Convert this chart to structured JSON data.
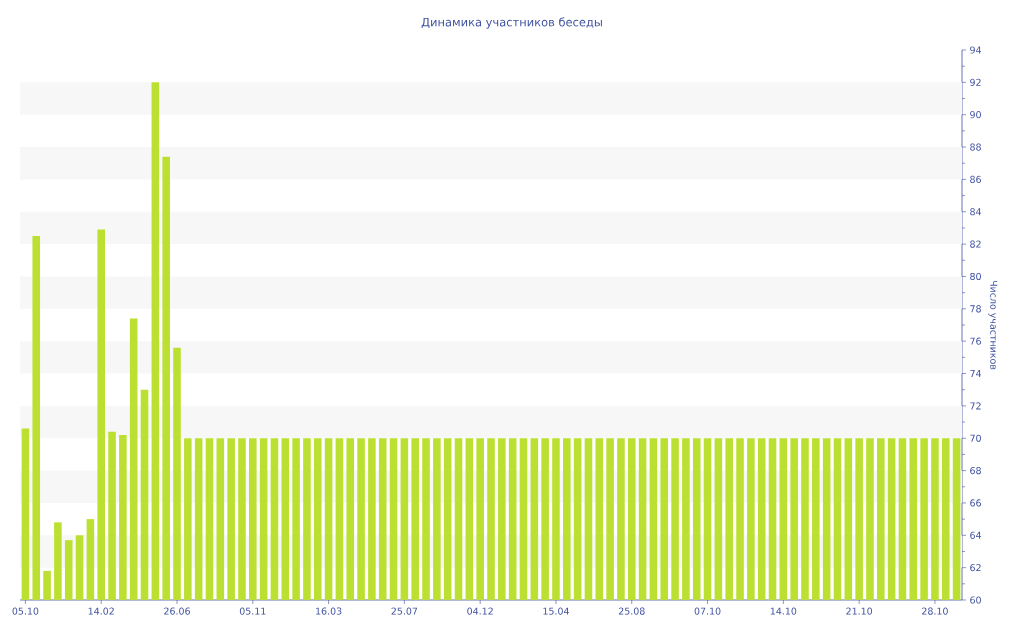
{
  "chart_data": {
    "type": "bar",
    "title": "Динамика участников беседы",
    "ylabel": "Число участников",
    "categories": [
      "05.10",
      null,
      null,
      null,
      null,
      null,
      null,
      "14.02",
      null,
      null,
      null,
      null,
      null,
      null,
      "26.06",
      null,
      null,
      null,
      null,
      null,
      null,
      "05.11",
      null,
      null,
      null,
      null,
      null,
      null,
      "16.03",
      null,
      null,
      null,
      null,
      null,
      null,
      "25.07",
      null,
      null,
      null,
      null,
      null,
      null,
      "04.12",
      null,
      null,
      null,
      null,
      null,
      null,
      "15.04",
      null,
      null,
      null,
      null,
      null,
      null,
      "25.08",
      null,
      null,
      null,
      null,
      null,
      null,
      "07.10",
      null,
      null,
      null,
      null,
      null,
      null,
      "14.10",
      null,
      null,
      null,
      null,
      null,
      null,
      "21.10",
      null,
      null,
      null,
      null,
      null,
      null,
      "28.10",
      null,
      null
    ],
    "values": [
      70.6,
      82.5,
      61.8,
      64.8,
      63.7,
      64.0,
      65.0,
      82.9,
      70.4,
      70.2,
      77.4,
      73.0,
      92.0,
      87.4,
      75.6,
      70,
      70,
      70,
      70,
      70,
      70,
      70,
      70,
      70,
      70,
      70,
      70,
      70,
      70,
      70,
      70,
      70,
      70,
      70,
      70,
      70,
      70,
      70,
      70,
      70,
      70,
      70,
      70,
      70,
      70,
      70,
      70,
      70,
      70,
      70,
      70,
      70,
      70,
      70,
      70,
      70,
      70,
      70,
      70,
      70,
      70,
      70,
      70,
      70,
      70,
      70,
      70,
      70,
      70,
      70,
      70,
      70,
      70,
      70,
      70,
      70,
      70,
      70,
      70,
      70,
      70,
      70,
      70,
      70,
      70,
      70,
      70
    ],
    "color": "#bce031",
    "ylim": [
      60,
      94
    ],
    "yticks": [
      60,
      62,
      64,
      66,
      68,
      70,
      72,
      74,
      76,
      78,
      80,
      82,
      84,
      86,
      88,
      90,
      92,
      94
    ],
    "bands": [
      {
        "axis": "y",
        "from": 62,
        "to": 64,
        "color": "#f7f7f7"
      },
      {
        "axis": "y",
        "from": 66,
        "to": 68,
        "color": "#f7f7f7"
      },
      {
        "axis": "y",
        "from": 70,
        "to": 72,
        "color": "#f7f7f7"
      },
      {
        "axis": "y",
        "from": 74,
        "to": 76,
        "color": "#f7f7f7"
      },
      {
        "axis": "y",
        "from": 78,
        "to": 80,
        "color": "#f7f7f7"
      },
      {
        "axis": "y",
        "from": 82,
        "to": 84,
        "color": "#f7f7f7"
      },
      {
        "axis": "y",
        "from": 86,
        "to": 88,
        "color": "#f7f7f7"
      },
      {
        "axis": "y",
        "from": 90,
        "to": 92,
        "color": "#f7f7f7"
      }
    ]
  }
}
